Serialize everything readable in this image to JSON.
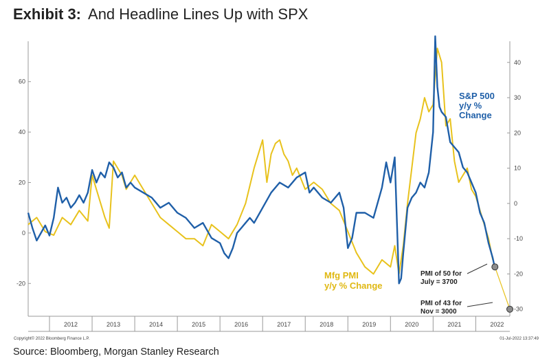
{
  "title": {
    "exhibit": "Exhibit 3:",
    "text": "And Headline Lines Up with SPX"
  },
  "source": "Source: Bloomberg, Morgan Stanley Research",
  "copyright": "Copyright© 2022 Bloomberg Finance L.P.",
  "timestamp": "01-Jul-2022 13:37:49",
  "annotations": {
    "spx_line1": "S&P 500",
    "spx_line2": "y/y %",
    "spx_line3": "Change",
    "pmi_line1": "Mfg PMI",
    "pmi_line2": "y/y % Change",
    "p1_line1": "PMI of 50 for",
    "p1_line2": "July = 3700",
    "p2_line1": "PMI of 43 for",
    "p2_line2": "Nov = 3000"
  },
  "colors": {
    "spx": "#1f5fa8",
    "pmi": "#e8c21c",
    "marker": "#8c8c8c",
    "axis": "#999999"
  },
  "chart_data": {
    "type": "line",
    "x_ticks": [
      "2012",
      "2013",
      "2014",
      "2015",
      "2016",
      "2017",
      "2018",
      "2019",
      "2020",
      "2021",
      "2022"
    ],
    "xlim": [
      2011.5,
      2022.8
    ],
    "left_axis": {
      "ticks": [
        -20,
        0,
        20,
        40,
        60
      ],
      "ylim": [
        -33,
        76
      ]
    },
    "right_axis": {
      "ticks": [
        -30,
        -20,
        -10,
        0,
        10,
        20,
        30,
        40
      ],
      "ylim": [
        -32,
        46
      ]
    },
    "series": [
      {
        "name": "S&P 500 y/y % Change",
        "axis": "left",
        "x": [
          2011.5,
          2011.6,
          2011.7,
          2011.8,
          2011.9,
          2012.0,
          2012.1,
          2012.2,
          2012.3,
          2012.4,
          2012.5,
          2012.6,
          2012.7,
          2012.8,
          2012.9,
          2013.0,
          2013.1,
          2013.2,
          2013.3,
          2013.4,
          2013.5,
          2013.6,
          2013.7,
          2013.8,
          2013.9,
          2014.0,
          2014.2,
          2014.4,
          2014.6,
          2014.8,
          2015.0,
          2015.2,
          2015.4,
          2015.6,
          2015.8,
          2016.0,
          2016.1,
          2016.2,
          2016.3,
          2016.4,
          2016.5,
          2016.6,
          2016.7,
          2016.8,
          2017.0,
          2017.2,
          2017.4,
          2017.6,
          2017.8,
          2018.0,
          2018.1,
          2018.2,
          2018.4,
          2018.6,
          2018.8,
          2018.9,
          2019.0,
          2019.1,
          2019.2,
          2019.4,
          2019.6,
          2019.8,
          2019.9,
          2020.0,
          2020.1,
          2020.2,
          2020.25,
          2020.3,
          2020.4,
          2020.5,
          2020.6,
          2020.7,
          2020.8,
          2020.9,
          2021.0,
          2021.05,
          2021.1,
          2021.15,
          2021.2,
          2021.3,
          2021.4,
          2021.5,
          2021.6,
          2021.7,
          2021.8,
          2021.9,
          2022.0,
          2022.1,
          2022.2,
          2022.3,
          2022.4,
          2022.45
        ],
        "y": [
          8,
          2,
          -3,
          0,
          3,
          -1,
          6,
          18,
          12,
          14,
          10,
          12,
          15,
          12,
          16,
          25,
          20,
          24,
          22,
          28,
          26,
          22,
          24,
          18,
          20,
          18,
          16,
          14,
          10,
          12,
          8,
          6,
          2,
          4,
          -2,
          -4,
          -8,
          -10,
          -6,
          0,
          2,
          4,
          6,
          4,
          10,
          16,
          20,
          18,
          22,
          24,
          16,
          18,
          14,
          12,
          16,
          10,
          -6,
          -2,
          8,
          8,
          6,
          18,
          28,
          20,
          30,
          -20,
          -18,
          -8,
          10,
          14,
          16,
          20,
          18,
          24,
          40,
          78,
          58,
          50,
          48,
          46,
          36,
          34,
          32,
          26,
          24,
          20,
          16,
          8,
          4,
          -4,
          -10,
          -14
        ]
      },
      {
        "name": "Mfg PMI y/y % Change",
        "axis": "right",
        "x": [
          2011.5,
          2011.7,
          2011.9,
          2012.1,
          2012.3,
          2012.5,
          2012.7,
          2012.9,
          2013.0,
          2013.1,
          2013.2,
          2013.3,
          2013.4,
          2013.5,
          2013.6,
          2013.7,
          2013.8,
          2014.0,
          2014.2,
          2014.4,
          2014.6,
          2014.8,
          2015.0,
          2015.2,
          2015.4,
          2015.6,
          2015.8,
          2016.0,
          2016.2,
          2016.4,
          2016.6,
          2016.8,
          2017.0,
          2017.1,
          2017.2,
          2017.3,
          2017.4,
          2017.5,
          2017.6,
          2017.7,
          2017.8,
          2018.0,
          2018.2,
          2018.4,
          2018.6,
          2018.8,
          2019.0,
          2019.2,
          2019.4,
          2019.6,
          2019.8,
          2020.0,
          2020.1,
          2020.2,
          2020.3,
          2020.4,
          2020.5,
          2020.6,
          2020.7,
          2020.8,
          2020.9,
          2021.0,
          2021.1,
          2021.2,
          2021.3,
          2021.4,
          2021.5,
          2021.6,
          2021.7,
          2021.8,
          2021.9,
          2022.0,
          2022.1,
          2022.2,
          2022.3,
          2022.4
        ],
        "y": [
          -6,
          -4,
          -8,
          -9,
          -4,
          -6,
          -2,
          -5,
          8,
          4,
          0,
          -4,
          -7,
          12,
          10,
          8,
          4,
          8,
          4,
          0,
          -4,
          -6,
          -8,
          -10,
          -10,
          -12,
          -6,
          -8,
          -10,
          -6,
          0,
          10,
          18,
          6,
          14,
          17,
          18,
          14,
          12,
          8,
          10,
          4,
          6,
          4,
          0,
          -2,
          -8,
          -14,
          -18,
          -20,
          -16,
          -18,
          -12,
          -20,
          -12,
          0,
          10,
          20,
          24,
          30,
          26,
          28,
          44,
          40,
          22,
          24,
          12,
          6,
          8,
          10,
          4,
          2,
          -2,
          -6,
          -10,
          -16
        ]
      }
    ],
    "markers": [
      {
        "x": 2022.45,
        "y": -18,
        "axis": "right"
      },
      {
        "x": 2022.8,
        "y": -30,
        "axis": "right"
      }
    ]
  }
}
